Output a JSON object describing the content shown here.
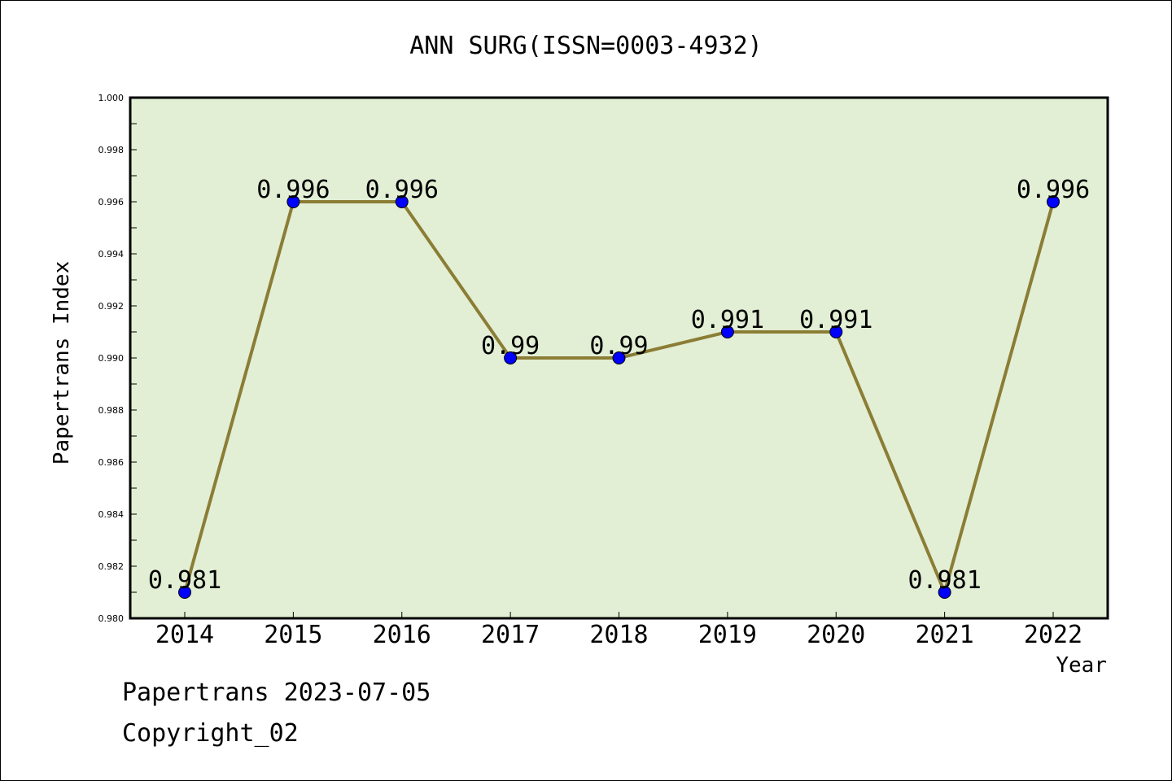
{
  "chart_data": {
    "type": "line",
    "title": "ANN SURG(ISSN=0003-4932)",
    "xlabel": "Year",
    "ylabel": "Papertrans Index",
    "categories": [
      "2014",
      "2015",
      "2016",
      "2017",
      "2018",
      "2019",
      "2020",
      "2021",
      "2022"
    ],
    "series": [
      {
        "values": [
          0.981,
          0.996,
          0.996,
          0.99,
          0.99,
          0.991,
          0.991,
          0.981,
          0.996
        ],
        "labels": [
          "0.981",
          "0.996",
          "0.996",
          "0.99",
          "0.99",
          "0.991",
          "0.991",
          "0.981",
          "0.996"
        ]
      }
    ],
    "ylim": [
      0.98,
      1.0
    ],
    "yticks": [
      "0.980",
      "0.982",
      "0.984",
      "0.986",
      "0.988",
      "0.990",
      "0.992",
      "0.994",
      "0.996",
      "0.998",
      "1.000"
    ],
    "grid": false,
    "colors": {
      "plot_background": "#e2efd5",
      "line": "#8b7d35",
      "marker": "#0000ff"
    }
  },
  "footer": {
    "line1": "Papertrans 2023-07-05",
    "line2": "Copyright_02"
  }
}
